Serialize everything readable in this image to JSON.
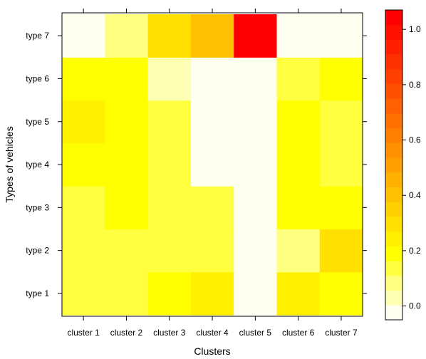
{
  "chart_data": {
    "type": "heatmap",
    "xlabel": "Clusters",
    "ylabel": "Types of vehicles",
    "x_categories": [
      "cluster 1",
      "cluster 2",
      "cluster 3",
      "cluster 4",
      "cluster 5",
      "cluster 6",
      "cluster 7"
    ],
    "y_categories": [
      "type 1",
      "type 2",
      "type 3",
      "type 4",
      "type 5",
      "type 6",
      "type 7"
    ],
    "values": [
      [
        0.12,
        0.12,
        0.18,
        0.22,
        0.0,
        0.22,
        0.18
      ],
      [
        0.12,
        0.12,
        0.12,
        0.12,
        0.0,
        0.08,
        0.32
      ],
      [
        0.12,
        0.18,
        0.15,
        0.12,
        0.0,
        0.18,
        0.18
      ],
      [
        0.18,
        0.18,
        0.15,
        0.0,
        0.0,
        0.18,
        0.12
      ],
      [
        0.22,
        0.18,
        0.15,
        0.0,
        0.0,
        0.18,
        0.12
      ],
      [
        0.18,
        0.18,
        0.05,
        0.0,
        0.0,
        0.12,
        0.18
      ],
      [
        0.0,
        0.08,
        0.32,
        0.38,
        1.05,
        0.0,
        0.0
      ]
    ],
    "colorbar": {
      "min": -0.05,
      "max": 1.07,
      "ticks": [
        0.0,
        0.2,
        0.4,
        0.6,
        0.8,
        1.0
      ],
      "tick_labels": [
        "0.0",
        "0.2",
        "0.4",
        "0.6",
        "0.8",
        "1.0"
      ],
      "colors": [
        "#FFFFF0",
        "#FFFFB3",
        "#FFFF80",
        "#FFFF40",
        "#FFFF00",
        "#FFF000",
        "#FFE000",
        "#FFD000",
        "#FFC000",
        "#FFB000",
        "#FFA000",
        "#FF9000",
        "#FF8000",
        "#FF7000",
        "#FF6000",
        "#FF5000",
        "#FF4000",
        "#FF3000",
        "#FF2000",
        "#FF1000",
        "#FF0000"
      ]
    }
  }
}
